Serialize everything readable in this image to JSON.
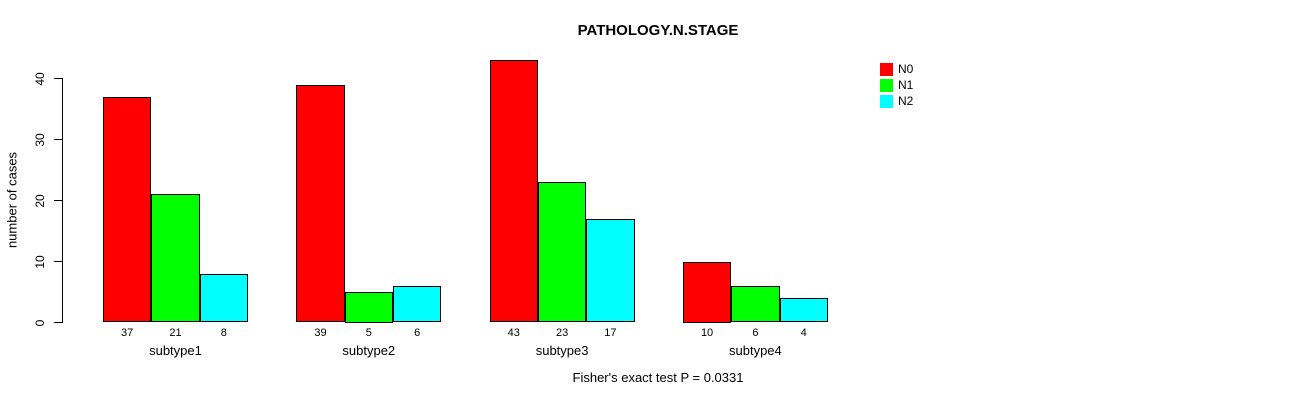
{
  "chart_data": {
    "type": "bar",
    "title": "PATHOLOGY.N.STAGE",
    "ylabel": "number of cases",
    "xlabel": "",
    "categories": [
      "subtype1",
      "subtype2",
      "subtype3",
      "subtype4"
    ],
    "series": [
      {
        "name": "N0",
        "color": "#ff0000",
        "values": [
          37,
          39,
          43,
          10
        ]
      },
      {
        "name": "N1",
        "color": "#00ff00",
        "values": [
          21,
          5,
          23,
          6
        ]
      },
      {
        "name": "N2",
        "color": "#00ffff",
        "values": [
          8,
          6,
          17,
          4
        ]
      }
    ],
    "yticks": [
      0,
      10,
      20,
      30,
      40
    ],
    "ylim": [
      0,
      43
    ],
    "bar_value_labels_shown": true,
    "grid": false,
    "legend_position": "top-right",
    "annotation": "Fisher's exact test P = 0.0331"
  }
}
